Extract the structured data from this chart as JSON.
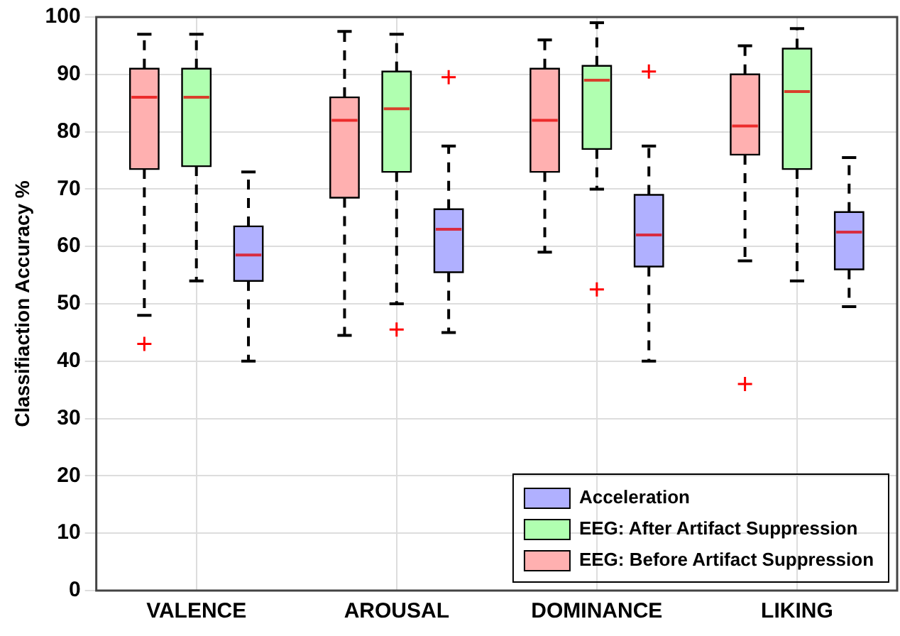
{
  "chart_data": {
    "type": "box",
    "ylabel": "Classifiaction Accuracy %",
    "categories": [
      "VALENCE",
      "AROUSAL",
      "DOMINANCE",
      "LIKING"
    ],
    "ylim": [
      0,
      100
    ],
    "yticks": [
      0,
      10,
      20,
      30,
      40,
      50,
      60,
      70,
      80,
      90,
      100
    ],
    "grid": true,
    "legend": "bottom right",
    "series": [
      {
        "name": "EEG: Before Artifact Suppression",
        "color": "#ffb0b0",
        "boxes": [
          {
            "low": 48,
            "q1": 73.5,
            "median": 86,
            "q3": 91,
            "high": 97,
            "outliers": [
              43
            ]
          },
          {
            "low": 44.5,
            "q1": 68.5,
            "median": 82,
            "q3": 86,
            "high": 97.5
          },
          {
            "low": 59,
            "q1": 73,
            "median": 82,
            "q3": 91,
            "high": 96
          },
          {
            "low": 57.5,
            "q1": 76,
            "median": 81,
            "q3": 90,
            "high": 95,
            "outliers": [
              36
            ]
          }
        ]
      },
      {
        "name": "EEG: After Artifact Suppression",
        "color": "#b0ffb0",
        "boxes": [
          {
            "low": 54,
            "q1": 74,
            "median": 86,
            "q3": 91,
            "high": 97
          },
          {
            "low": 50,
            "q1": 73,
            "median": 84,
            "q3": 90.5,
            "high": 97,
            "outliers": [
              45.5
            ]
          },
          {
            "low": 70,
            "q1": 77,
            "median": 89,
            "q3": 91.5,
            "high": 99,
            "outliers": [
              52.5
            ]
          },
          {
            "low": 54,
            "q1": 73.5,
            "median": 87,
            "q3": 94.5,
            "high": 98
          }
        ]
      },
      {
        "name": "Acceleration",
        "color": "#b0b0ff",
        "boxes": [
          {
            "low": 40,
            "q1": 54,
            "median": 58.5,
            "q3": 63.5,
            "high": 73
          },
          {
            "low": 45,
            "q1": 55.5,
            "median": 63,
            "q3": 66.5,
            "high": 77.5,
            "outliers": [
              89.5
            ]
          },
          {
            "low": 40,
            "q1": 56.5,
            "median": 62,
            "q3": 69,
            "high": 77.5,
            "outliers": [
              90.5
            ]
          },
          {
            "low": 49.5,
            "q1": 56,
            "median": 62.5,
            "q3": 66,
            "high": 75.5
          }
        ]
      }
    ]
  }
}
